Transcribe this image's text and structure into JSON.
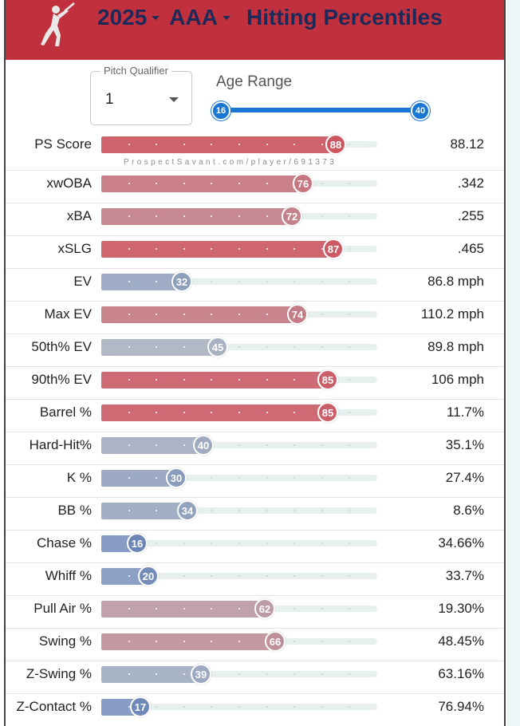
{
  "header": {
    "year": "2025",
    "level": "AAA",
    "title": "Hitting Percentiles",
    "bg_color": "#c0303d",
    "text_color": "#1c2a5a",
    "logo_icon": "batter-silhouette-icon"
  },
  "controls": {
    "pitch_qualifier_label": "Pitch Qualifier",
    "pitch_qualifier_value": "1",
    "age_range_label": "Age Range",
    "age_min": "16",
    "age_max": "40",
    "slider_color": "#1976d2"
  },
  "watermark": "ProspectSavant.com/player/691373",
  "metrics": [
    {
      "label": "PS Score",
      "percentile": 88,
      "value": "88.12"
    },
    {
      "label": "xwOBA",
      "percentile": 76,
      "value": ".342"
    },
    {
      "label": "xBA",
      "percentile": 72,
      "value": ".255"
    },
    {
      "label": "xSLG",
      "percentile": 87,
      "value": ".465"
    },
    {
      "label": "EV",
      "percentile": 32,
      "value": "86.8 mph"
    },
    {
      "label": "Max EV",
      "percentile": 74,
      "value": "110.2 mph"
    },
    {
      "label": "50th% EV",
      "percentile": 45,
      "value": "89.8 mph"
    },
    {
      "label": "90th% EV",
      "percentile": 85,
      "value": "106 mph"
    },
    {
      "label": "Barrel %",
      "percentile": 85,
      "value": "11.7%"
    },
    {
      "label": "Hard-Hit%",
      "percentile": 40,
      "value": "35.1%"
    },
    {
      "label": "K %",
      "percentile": 30,
      "value": "27.4%"
    },
    {
      "label": "BB %",
      "percentile": 34,
      "value": "8.6%"
    },
    {
      "label": "Chase %",
      "percentile": 16,
      "value": "34.66%"
    },
    {
      "label": "Whiff %",
      "percentile": 20,
      "value": "33.7%"
    },
    {
      "label": "Pull Air %",
      "percentile": 62,
      "value": "19.30%"
    },
    {
      "label": "Swing %",
      "percentile": 66,
      "value": "48.45%"
    },
    {
      "label": "Z-Swing %",
      "percentile": 39,
      "value": "63.16%"
    },
    {
      "label": "Z-Contact %",
      "percentile": 17,
      "value": "76.94%"
    }
  ]
}
